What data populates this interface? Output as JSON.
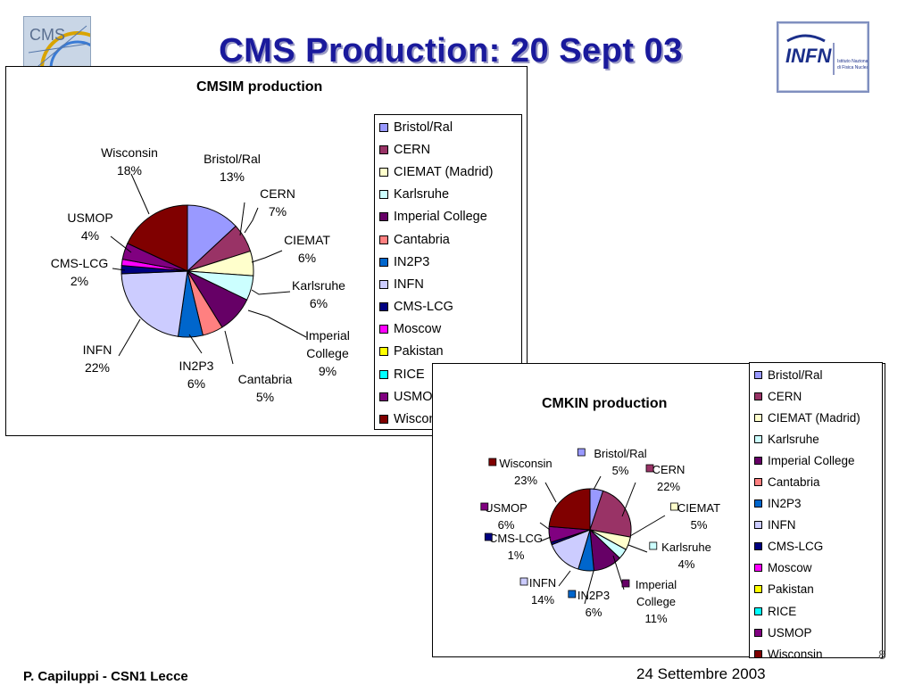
{
  "slide": {
    "title": "CMS Production: 20 Sept 03",
    "footer_left": "P. Capiluppi - CSN1 Lecce",
    "footer_right": "24 Settembre 2003",
    "page_number": "8",
    "logo_left_text": "CMS",
    "logo_right_text": "INFN",
    "logo_right_subtext": "Istituto Nazionale di Fisica Nucleare"
  },
  "legend_items": [
    "Bristol/Ral",
    "CERN",
    "CIEMAT (Madrid)",
    "Karlsruhe",
    "Imperial College",
    "Cantabria",
    "IN2P3",
    "INFN",
    "CMS-LCG",
    "Moscow",
    "Pakistan",
    "RICE",
    "USMOP",
    "Wisconsin"
  ],
  "legend_colors": [
    "#9999ff",
    "#993366",
    "#ffffcc",
    "#ccffff",
    "#660066",
    "#ff8080",
    "#0066cc",
    "#ccccff",
    "#000080",
    "#ff00ff",
    "#ffff00",
    "#00ffff",
    "#800080",
    "#800000"
  ],
  "chart_data": [
    {
      "type": "pie",
      "title": "CMSIM production",
      "slices": [
        {
          "name": "Bristol/Ral",
          "value": 13,
          "label": [
            "Bristol/Ral",
            "13%"
          ],
          "color": "#9999ff"
        },
        {
          "name": "CERN",
          "value": 7,
          "label": [
            "CERN",
            "7%"
          ],
          "color": "#993366"
        },
        {
          "name": "CIEMAT",
          "value": 6,
          "label": [
            "CIEMAT",
            "6%"
          ],
          "color": "#ffffcc"
        },
        {
          "name": "Karlsruhe",
          "value": 6,
          "label": [
            "Karlsruhe",
            "6%"
          ],
          "color": "#ccffff"
        },
        {
          "name": "Imperial College",
          "value": 9,
          "label": [
            "Imperial",
            "College",
            "9%"
          ],
          "color": "#660066"
        },
        {
          "name": "Cantabria",
          "value": 5,
          "label": [
            "Cantabria",
            "5%"
          ],
          "color": "#ff8080"
        },
        {
          "name": "IN2P3",
          "value": 6,
          "label": [
            "IN2P3",
            "6%"
          ],
          "color": "#0066cc"
        },
        {
          "name": "INFN",
          "value": 22,
          "label": [
            "INFN",
            "22%"
          ],
          "color": "#ccccff"
        },
        {
          "name": "CMS-LCG",
          "value": 2,
          "label": [
            "CMS-LCG",
            "2%"
          ],
          "color": "#000080"
        },
        {
          "name": "Moscow",
          "value": 1.5,
          "label": [],
          "color": "#ff00ff"
        },
        {
          "name": "USMOP",
          "value": 4,
          "label": [
            "USMOP",
            "4%"
          ],
          "color": "#800080"
        },
        {
          "name": "Wisconsin",
          "value": 18,
          "label": [
            "Wisconsin",
            "18%"
          ],
          "color": "#800000"
        }
      ],
      "legend_position": "right"
    },
    {
      "type": "pie",
      "title": "CMKIN production",
      "slices": [
        {
          "name": "Bristol/Ral",
          "value": 5,
          "label": [
            "Bristol/Ral",
            "5%"
          ],
          "color": "#9999ff"
        },
        {
          "name": "CERN",
          "value": 22,
          "label": [
            "CERN",
            "22%"
          ],
          "color": "#993366"
        },
        {
          "name": "CIEMAT",
          "value": 5,
          "label": [
            "CIEMAT",
            "5%"
          ],
          "color": "#ffffcc"
        },
        {
          "name": "Karlsruhe",
          "value": 4,
          "label": [
            "Karlsruhe",
            "4%"
          ],
          "color": "#ccffff"
        },
        {
          "name": "Imperial College",
          "value": 11,
          "label": [
            "Imperial",
            "College",
            "11%"
          ],
          "color": "#660066"
        },
        {
          "name": "IN2P3",
          "value": 6,
          "label": [
            "IN2P3",
            "6%"
          ],
          "color": "#0066cc"
        },
        {
          "name": "INFN",
          "value": 14,
          "label": [
            "INFN",
            "14%"
          ],
          "color": "#ccccff"
        },
        {
          "name": "CMS-LCG",
          "value": 1,
          "label": [
            "CMS-LCG",
            "1%"
          ],
          "color": "#000080"
        },
        {
          "name": "USMOP",
          "value": 6,
          "label": [
            "USMOP",
            "6%"
          ],
          "color": "#800080"
        },
        {
          "name": "Wisconsin",
          "value": 23,
          "label": [
            "Wisconsin",
            "23%"
          ],
          "color": "#800000"
        }
      ],
      "legend_position": "right"
    }
  ]
}
